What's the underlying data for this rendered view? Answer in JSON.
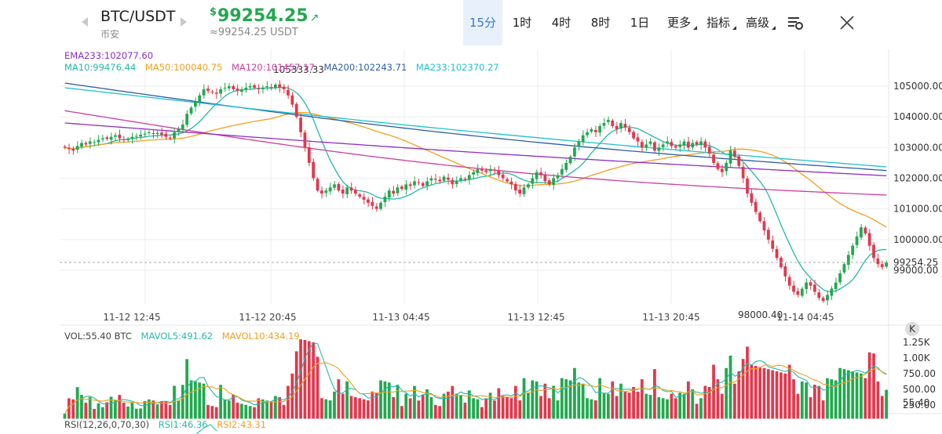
{
  "header": {
    "pair": "BTC/USDT",
    "exchange": "币安",
    "price_currency": "$",
    "price": "99254.25",
    "price_arrow": "↗",
    "price_sub": "≈99254.25 USDT",
    "intervals": [
      {
        "label": "15分",
        "active": true
      },
      {
        "label": "1时",
        "active": false
      },
      {
        "label": "4时",
        "active": false
      },
      {
        "label": "8时",
        "active": false
      },
      {
        "label": "1日",
        "active": false
      },
      {
        "label": "更多",
        "active": false
      },
      {
        "label": "指标",
        "active": false
      },
      {
        "label": "高级",
        "active": false
      }
    ]
  },
  "main_legend": {
    "ema": {
      "text": "EMA233:102077.60",
      "color": "#8e2fc1"
    },
    "ma": [
      {
        "text": "MA10:99476.44",
        "color": "#26b8a8"
      },
      {
        "text": "MA50:100040.75",
        "color": "#f0a020"
      },
      {
        "text": "MA120:101457.17",
        "color": "#cc3fa0"
      },
      {
        "text": "MA200:102243.71",
        "color": "#2d5fa8"
      },
      {
        "text": "MA233:102370.27",
        "color": "#21c0d0"
      }
    ]
  },
  "price_axis": [
    "105000.00",
    "104000.00",
    "103000.00",
    "102000.00",
    "101000.00",
    "100000.00",
    "99000.00"
  ],
  "current_price_label": "99254.25",
  "high_label": "105333.33",
  "low_label": "98000.40",
  "time_axis": [
    "11-12 12:45",
    "11-12 20:45",
    "11-13 04:45",
    "11-13 12:45",
    "11-13 20:45",
    "11-14 04:45"
  ],
  "volume": {
    "legend": [
      {
        "text": "VOL:55.40 BTC",
        "color": "#444"
      },
      {
        "text": "MAVOL5:491.62",
        "color": "#26b8a8"
      },
      {
        "text": "MAVOL10:434.19",
        "color": "#f0a020"
      }
    ],
    "axis": [
      "1.25K",
      "1.00K",
      "750.00",
      "500.00",
      "250.00"
    ],
    "current_label": "55.40",
    "k_badge": "K"
  },
  "rsi": {
    "legend": [
      {
        "text": "RSI(12,26,0,70,30)",
        "color": "#444"
      },
      {
        "text": "RSI1:46.36",
        "color": "#26b8a8"
      },
      {
        "text": "RSI2:43.31",
        "color": "#f0a020"
      }
    ]
  },
  "colors": {
    "up": "#22a84f",
    "down": "#e0384d",
    "grid": "#eeeeee"
  },
  "chart_data": {
    "type": "candlestick",
    "interval": "15分",
    "y_range": [
      98000.4,
      105333.33
    ],
    "current_price": 99254.25,
    "ohlc_close_path_description_free": true,
    "closes": [
      103000,
      102950,
      102900,
      103050,
      103150,
      103100,
      103200,
      103180,
      103250,
      103300,
      103280,
      103350,
      103400,
      103300,
      103250,
      103280,
      103350,
      103380,
      103420,
      103450,
      103500,
      103450,
      103480,
      103420,
      103350,
      103300,
      103500,
      103600,
      103750,
      104100,
      104300,
      104500,
      104700,
      104900,
      104850,
      104800,
      104750,
      104900,
      104950,
      105000,
      104900,
      104850,
      104900,
      104950,
      105000,
      104950,
      104900,
      104950,
      105000,
      104950,
      105050,
      104950,
      104900,
      104700,
      104400,
      104000,
      103500,
      103000,
      102500,
      102000,
      101600,
      101500,
      101600,
      101700,
      101800,
      101600,
      101500,
      101700,
      101600,
      101500,
      101400,
      101300,
      101200,
      101100,
      101000,
      101200,
      101400,
      101600,
      101500,
      101700,
      101650,
      101800,
      101750,
      101900,
      101850,
      101750,
      101900,
      102000,
      101950,
      101900,
      102050,
      101950,
      101800,
      101900,
      102000,
      101950,
      102100,
      102200,
      102300,
      102250,
      102200,
      102300,
      102250,
      102100,
      102000,
      101900,
      101800,
      101600,
      101500,
      101700,
      101800,
      102000,
      102200,
      102100,
      101900,
      101800,
      102000,
      102100,
      102300,
      102500,
      102700,
      103000,
      103200,
      103400,
      103500,
      103600,
      103500,
      103700,
      103800,
      103900,
      103700,
      103600,
      103800,
      103650,
      103500,
      103300,
      103200,
      103000,
      103100,
      103200,
      102900,
      103000,
      103100,
      103200,
      103050,
      103000,
      103100,
      103200,
      103000,
      103150,
      103100,
      103200,
      103000,
      102800,
      102500,
      102300,
      102200,
      102500,
      102900,
      102700,
      102400,
      102000,
      101500,
      101200,
      100900,
      100600,
      100300,
      100000,
      99700,
      99400,
      99100,
      98800,
      98500,
      98300,
      98200,
      98400,
      98600,
      98500,
      98300,
      98100,
      98000,
      98200,
      98400,
      98600,
      98900,
      99200,
      99500,
      99800,
      100100,
      100400,
      100200,
      99800,
      99400,
      99200,
      99100,
      99254
    ]
  }
}
